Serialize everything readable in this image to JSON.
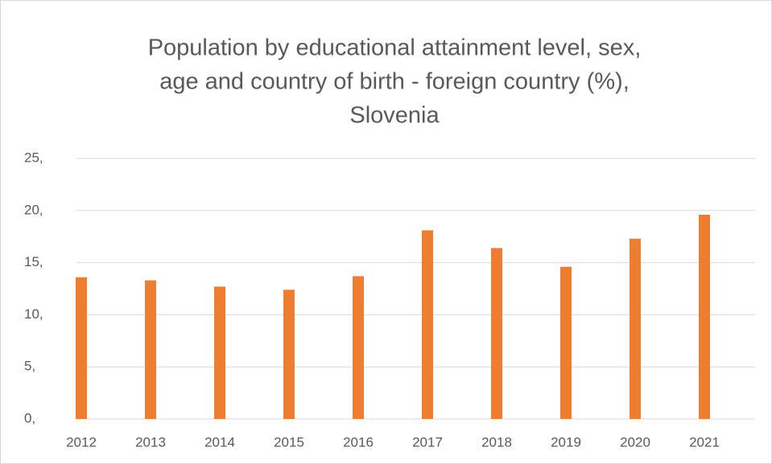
{
  "chart_data": {
    "type": "bar",
    "title": [
      "Population by educational attainment level, sex,",
      "age and country of birth - foreign country (%),",
      "Slovenia"
    ],
    "categories": [
      "2012",
      "2013",
      "2014",
      "2015",
      "2016",
      "2017",
      "2018",
      "2019",
      "2020",
      "2021"
    ],
    "values": [
      13.6,
      13.3,
      12.7,
      12.4,
      13.7,
      18.1,
      16.4,
      14.6,
      17.3,
      19.6
    ],
    "color": "#ed7d31",
    "ylim": [
      0,
      25
    ],
    "yticks": [
      {
        "value": 0,
        "label": "0,"
      },
      {
        "value": 5,
        "label": "5,"
      },
      {
        "value": 10,
        "label": "10,"
      },
      {
        "value": 15,
        "label": "15,"
      },
      {
        "value": 20,
        "label": "20,"
      },
      {
        "value": 25,
        "label": "25,"
      }
    ],
    "grid": true
  }
}
